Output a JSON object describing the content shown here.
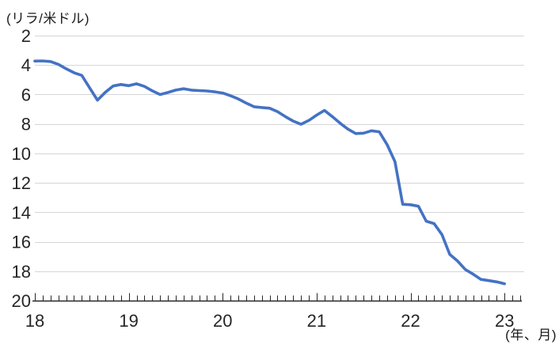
{
  "chart_data": {
    "type": "line",
    "y_unit_label": "(リラ/米ドル)",
    "x_unit_label": "(年、月)",
    "y_ticks": [
      "2",
      "4",
      "6",
      "8",
      "10",
      "12",
      "14",
      "16",
      "18",
      "20"
    ],
    "year_tick_labels": [
      "18",
      "19",
      "20",
      "21",
      "22",
      "23"
    ],
    "y_axis": {
      "min": 2,
      "max": 20,
      "inverted": true,
      "gridlines": true,
      "tick_interval": 2
    },
    "x_axis": {
      "start": "2018-01",
      "end": "2023-01",
      "interval": "monthly",
      "extra_ticks_after_last_point": 2
    },
    "series": [
      {
        "color": "#4472C4",
        "values": [
          3.73,
          3.72,
          3.76,
          3.95,
          4.25,
          4.52,
          4.7,
          5.55,
          6.38,
          5.85,
          5.42,
          5.32,
          5.4,
          5.27,
          5.45,
          5.75,
          6.0,
          5.86,
          5.7,
          5.61,
          5.7,
          5.73,
          5.76,
          5.82,
          5.9,
          6.08,
          6.3,
          6.58,
          6.83,
          6.88,
          6.93,
          7.16,
          7.5,
          7.8,
          8.02,
          7.76,
          7.4,
          7.08,
          7.5,
          7.95,
          8.35,
          8.65,
          8.62,
          8.46,
          8.53,
          9.4,
          10.55,
          13.45,
          13.48,
          13.58,
          14.6,
          14.76,
          15.5,
          16.85,
          17.3,
          17.88,
          18.2,
          18.55,
          18.63,
          18.72,
          18.85
        ]
      }
    ],
    "colors": {
      "line": "#4472C4",
      "grid": "#D6D6D6",
      "axis": "#262626",
      "text": "#262626"
    }
  }
}
